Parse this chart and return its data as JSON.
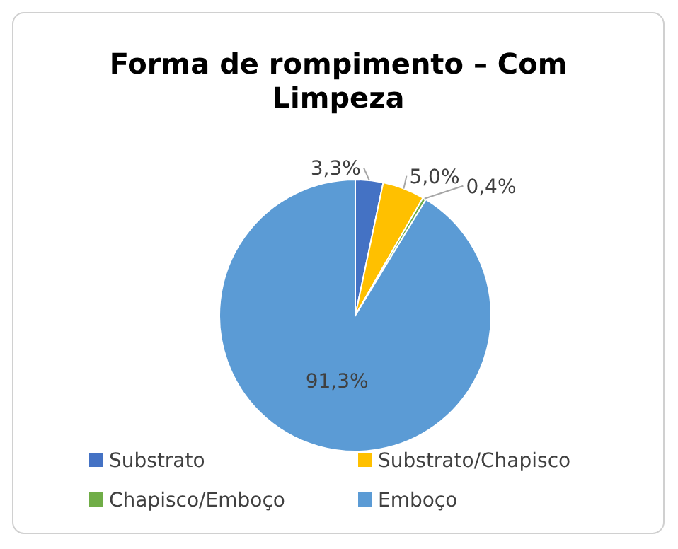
{
  "chart_data": {
    "type": "pie",
    "title": "Forma de rompimento – Com Limpeza",
    "categories": [
      "Substrato",
      "Substrato/Chapisco",
      "Chapisco/Emboço",
      "Emboço"
    ],
    "values": [
      3.3,
      5.0,
      0.4,
      91.3
    ],
    "value_labels": [
      "3,3%",
      "5,0%",
      "0,4%",
      "91,3%"
    ],
    "colors": [
      "#4472c4",
      "#ffc000",
      "#70ad47",
      "#5b9bd5"
    ],
    "legend": "bottom"
  }
}
